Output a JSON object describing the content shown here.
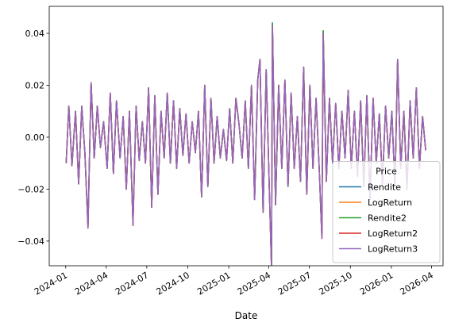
{
  "chart_data": {
    "type": "line",
    "x_label": "Date",
    "legend_title": "Price",
    "legend": "lower right",
    "xlim": [
      "2023-11-25",
      "2026-04-27"
    ],
    "xticks": [
      {
        "value": "2024-01-01",
        "label": "2024-01"
      },
      {
        "value": "2024-04-01",
        "label": "2024-04"
      },
      {
        "value": "2024-07-01",
        "label": "2024-07"
      },
      {
        "value": "2024-10-01",
        "label": "2024-10"
      },
      {
        "value": "2025-01-01",
        "label": "2025-01"
      },
      {
        "value": "2025-04-01",
        "label": "2025-04"
      },
      {
        "value": "2025-07-01",
        "label": "2025-07"
      },
      {
        "value": "2025-10-01",
        "label": "2025-10"
      },
      {
        "value": "2026-01-01",
        "label": "2026-01"
      },
      {
        "value": "2026-04-01",
        "label": "2026-04"
      }
    ],
    "ylim": [
      -0.0495,
      0.0504
    ],
    "yticks": [
      {
        "value": -0.04,
        "label": "−0.04"
      },
      {
        "value": -0.02,
        "label": "−0.02"
      },
      {
        "value": 0,
        "label": "0.00"
      },
      {
        "value": 0.02,
        "label": "0.02"
      },
      {
        "value": 0.04,
        "label": "0.04"
      }
    ],
    "x": [
      "2024-01-02",
      "2024-01-08",
      "2024-01-15",
      "2024-01-23",
      "2024-01-30",
      "2024-02-06",
      "2024-02-13",
      "2024-02-20",
      "2024-02-27",
      "2024-03-05",
      "2024-03-12",
      "2024-03-19",
      "2024-03-26",
      "2024-04-03",
      "2024-04-10",
      "2024-04-17",
      "2024-04-24",
      "2024-05-02",
      "2024-05-09",
      "2024-05-16",
      "2024-05-23",
      "2024-05-31",
      "2024-06-07",
      "2024-06-14",
      "2024-06-21",
      "2024-06-28",
      "2024-07-05",
      "2024-07-12",
      "2024-07-19",
      "2024-07-26",
      "2024-08-02",
      "2024-08-09",
      "2024-08-16",
      "2024-08-23",
      "2024-08-30",
      "2024-09-06",
      "2024-09-13",
      "2024-09-20",
      "2024-09-27",
      "2024-10-04",
      "2024-10-11",
      "2024-10-18",
      "2024-10-25",
      "2024-11-01",
      "2024-11-08",
      "2024-11-15",
      "2024-11-22",
      "2024-11-29",
      "2024-12-06",
      "2024-12-13",
      "2024-12-20",
      "2024-12-27",
      "2025-01-03",
      "2025-01-10",
      "2025-01-17",
      "2025-01-24",
      "2025-01-31",
      "2025-02-07",
      "2025-02-14",
      "2025-02-21",
      "2025-02-28",
      "2025-03-07",
      "2025-03-12",
      "2025-03-19",
      "2025-03-26",
      "2025-04-02",
      "2025-04-07",
      "2025-04-09",
      "2025-04-16",
      "2025-04-23",
      "2025-04-30",
      "2025-05-07",
      "2025-05-14",
      "2025-05-21",
      "2025-05-28",
      "2025-06-04",
      "2025-06-11",
      "2025-06-18",
      "2025-06-25",
      "2025-07-02",
      "2025-07-09",
      "2025-07-16",
      "2025-07-23",
      "2025-07-29",
      "2025-08-01",
      "2025-08-08",
      "2025-08-15",
      "2025-08-22",
      "2025-08-29",
      "2025-09-05",
      "2025-09-12",
      "2025-09-19",
      "2025-09-26",
      "2025-10-03",
      "2025-10-10",
      "2025-10-17",
      "2025-10-24",
      "2025-10-31",
      "2025-11-07",
      "2025-11-14",
      "2025-11-21",
      "2025-11-28",
      "2025-12-05",
      "2025-12-12",
      "2025-12-19",
      "2025-12-26",
      "2026-01-02",
      "2026-01-09",
      "2026-01-15",
      "2026-01-22",
      "2026-01-29",
      "2026-02-05",
      "2026-02-12",
      "2026-02-19",
      "2026-02-26",
      "2026-03-05",
      "2026-03-12",
      "2026-03-19"
    ],
    "series": [
      {
        "name": "Rendite",
        "color": "#1f77b4",
        "values": [
          -0.01,
          0.012,
          -0.011,
          0.01,
          -0.018,
          0.012,
          -0.006,
          -0.034,
          0.021,
          -0.008,
          0.012,
          -0.004,
          0.006,
          -0.012,
          0.017,
          -0.014,
          0.014,
          -0.008,
          0.008,
          -0.02,
          0.01,
          -0.033,
          0.012,
          -0.009,
          0.006,
          -0.01,
          0.019,
          -0.027,
          0.016,
          -0.022,
          0.01,
          -0.008,
          0.017,
          -0.01,
          0.014,
          -0.012,
          0.011,
          -0.007,
          0.009,
          -0.01,
          0.006,
          -0.006,
          0.01,
          -0.023,
          0.02,
          -0.019,
          0.015,
          -0.01,
          0.008,
          -0.008,
          0.003,
          -0.009,
          0.011,
          -0.01,
          0.015,
          0.005,
          -0.008,
          0.014,
          -0.012,
          0.02,
          -0.024,
          0.022,
          0.03,
          -0.029,
          0.026,
          -0.02,
          -0.05,
          0.044,
          -0.026,
          0.02,
          -0.012,
          0.022,
          -0.019,
          0.017,
          -0.012,
          0.008,
          -0.017,
          0.027,
          -0.022,
          0.02,
          -0.012,
          0.015,
          -0.012,
          -0.038,
          0.041,
          -0.017,
          0.015,
          -0.01,
          0.013,
          -0.012,
          0.01,
          -0.008,
          0.018,
          -0.012,
          0.01,
          -0.015,
          0.014,
          -0.019,
          0.016,
          -0.024,
          0.015,
          -0.01,
          0.009,
          -0.018,
          0.012,
          -0.008,
          0.01,
          -0.019,
          0.03,
          -0.012,
          0.01,
          -0.02,
          0.014,
          -0.008,
          0.019,
          -0.012,
          0.008,
          -0.005
        ]
      },
      {
        "name": "LogReturn",
        "color": "#ff7f0e",
        "values": [
          -0.01,
          0.012,
          -0.011,
          0.01,
          -0.018,
          0.012,
          -0.006,
          -0.035,
          0.021,
          -0.008,
          0.012,
          -0.004,
          0.006,
          -0.012,
          0.017,
          -0.014,
          0.014,
          -0.008,
          0.008,
          -0.02,
          0.01,
          -0.034,
          0.012,
          -0.009,
          0.006,
          -0.01,
          0.019,
          -0.027,
          0.016,
          -0.022,
          0.01,
          -0.008,
          0.017,
          -0.01,
          0.014,
          -0.012,
          0.011,
          -0.007,
          0.009,
          -0.01,
          0.006,
          -0.006,
          0.01,
          -0.023,
          0.02,
          -0.019,
          0.015,
          -0.01,
          0.008,
          -0.008,
          0.003,
          -0.009,
          0.011,
          -0.01,
          0.015,
          0.005,
          -0.008,
          0.014,
          -0.012,
          0.02,
          -0.024,
          0.022,
          0.03,
          -0.029,
          0.026,
          -0.02,
          -0.051,
          0.043,
          -0.026,
          0.02,
          -0.012,
          0.022,
          -0.019,
          0.017,
          -0.012,
          0.008,
          -0.017,
          0.027,
          -0.022,
          0.02,
          -0.012,
          0.015,
          -0.012,
          -0.039,
          0.04,
          -0.017,
          0.015,
          -0.01,
          0.013,
          -0.012,
          0.01,
          -0.008,
          0.018,
          -0.012,
          0.01,
          -0.015,
          0.014,
          -0.019,
          0.016,
          -0.024,
          0.015,
          -0.01,
          0.009,
          -0.018,
          0.012,
          -0.008,
          0.01,
          -0.019,
          0.03,
          -0.012,
          0.01,
          -0.02,
          0.014,
          -0.008,
          0.019,
          -0.012,
          0.008,
          -0.005
        ]
      },
      {
        "name": "Rendite2",
        "color": "#2ca02c",
        "values": [
          -0.01,
          0.012,
          -0.011,
          0.01,
          -0.018,
          0.012,
          -0.006,
          -0.034,
          0.021,
          -0.008,
          0.012,
          -0.004,
          0.006,
          -0.012,
          0.017,
          -0.014,
          0.014,
          -0.008,
          0.008,
          -0.02,
          0.01,
          -0.033,
          0.012,
          -0.009,
          0.006,
          -0.01,
          0.019,
          -0.027,
          0.016,
          -0.022,
          0.01,
          -0.008,
          0.017,
          -0.01,
          0.014,
          -0.012,
          0.011,
          -0.007,
          0.009,
          -0.01,
          0.006,
          -0.006,
          0.01,
          -0.023,
          0.02,
          -0.019,
          0.015,
          -0.01,
          0.008,
          -0.008,
          0.003,
          -0.009,
          0.011,
          -0.01,
          0.015,
          0.005,
          -0.008,
          0.014,
          -0.012,
          0.02,
          -0.024,
          0.022,
          0.03,
          -0.029,
          0.026,
          -0.02,
          -0.05,
          0.044,
          -0.026,
          0.02,
          -0.012,
          0.022,
          -0.019,
          0.017,
          -0.012,
          0.008,
          -0.017,
          0.027,
          -0.022,
          0.02,
          -0.012,
          0.015,
          -0.012,
          -0.038,
          0.041,
          -0.017,
          0.015,
          -0.01,
          0.013,
          -0.012,
          0.01,
          -0.008,
          0.018,
          -0.012,
          0.01,
          -0.015,
          0.014,
          -0.019,
          0.016,
          -0.024,
          0.015,
          -0.01,
          0.009,
          -0.018,
          0.012,
          -0.008,
          0.01,
          -0.019,
          0.03,
          -0.012,
          0.01,
          -0.02,
          0.014,
          -0.008,
          0.019,
          -0.012,
          0.008,
          -0.005
        ]
      },
      {
        "name": "LogReturn2",
        "color": "#d62728",
        "values": [
          -0.01,
          0.012,
          -0.011,
          0.01,
          -0.018,
          0.012,
          -0.006,
          -0.035,
          0.021,
          -0.008,
          0.012,
          -0.004,
          0.006,
          -0.012,
          0.017,
          -0.014,
          0.014,
          -0.008,
          0.008,
          -0.02,
          0.01,
          -0.034,
          0.012,
          -0.009,
          0.006,
          -0.01,
          0.019,
          -0.027,
          0.016,
          -0.022,
          0.01,
          -0.008,
          0.017,
          -0.01,
          0.014,
          -0.012,
          0.011,
          -0.007,
          0.009,
          -0.01,
          0.006,
          -0.006,
          0.01,
          -0.023,
          0.02,
          -0.019,
          0.015,
          -0.01,
          0.008,
          -0.008,
          0.003,
          -0.009,
          0.011,
          -0.01,
          0.015,
          0.005,
          -0.008,
          0.014,
          -0.012,
          0.02,
          -0.024,
          0.022,
          0.03,
          -0.029,
          0.026,
          -0.02,
          -0.051,
          0.043,
          -0.026,
          0.02,
          -0.012,
          0.022,
          -0.019,
          0.017,
          -0.012,
          0.008,
          -0.017,
          0.027,
          -0.022,
          0.02,
          -0.012,
          0.015,
          -0.012,
          -0.039,
          0.04,
          -0.017,
          0.015,
          -0.01,
          0.013,
          -0.012,
          0.01,
          -0.008,
          0.018,
          -0.012,
          0.01,
          -0.015,
          0.014,
          -0.019,
          0.016,
          -0.024,
          0.015,
          -0.01,
          0.009,
          -0.018,
          0.012,
          -0.008,
          0.01,
          -0.019,
          0.03,
          -0.012,
          0.01,
          -0.02,
          0.014,
          -0.008,
          0.019,
          -0.012,
          0.008,
          -0.005
        ]
      },
      {
        "name": "LogReturn3",
        "color": "#9467bd",
        "values": [
          -0.01,
          0.012,
          -0.011,
          0.01,
          -0.018,
          0.012,
          -0.006,
          -0.035,
          0.021,
          -0.008,
          0.012,
          -0.004,
          0.006,
          -0.012,
          0.017,
          -0.014,
          0.014,
          -0.008,
          0.008,
          -0.02,
          0.01,
          -0.034,
          0.012,
          -0.009,
          0.006,
          -0.01,
          0.019,
          -0.027,
          0.016,
          -0.022,
          0.01,
          -0.008,
          0.017,
          -0.01,
          0.014,
          -0.012,
          0.011,
          -0.007,
          0.009,
          -0.01,
          0.006,
          -0.006,
          0.01,
          -0.023,
          0.02,
          -0.019,
          0.015,
          -0.01,
          0.008,
          -0.008,
          0.003,
          -0.009,
          0.011,
          -0.01,
          0.015,
          0.005,
          -0.008,
          0.014,
          -0.012,
          0.02,
          -0.024,
          0.022,
          0.03,
          -0.029,
          0.026,
          -0.02,
          -0.051,
          0.043,
          -0.026,
          0.02,
          -0.012,
          0.022,
          -0.019,
          0.017,
          -0.012,
          0.008,
          -0.017,
          0.027,
          -0.022,
          0.02,
          -0.012,
          0.015,
          -0.012,
          -0.039,
          0.04,
          -0.017,
          0.015,
          -0.01,
          0.013,
          -0.012,
          0.01,
          -0.008,
          0.018,
          -0.012,
          0.01,
          -0.015,
          0.014,
          -0.019,
          0.016,
          -0.024,
          0.015,
          -0.01,
          0.009,
          -0.018,
          0.012,
          -0.008,
          0.01,
          -0.019,
          0.03,
          -0.012,
          0.01,
          -0.02,
          0.014,
          -0.008,
          0.019,
          -0.012,
          0.008,
          -0.005
        ]
      }
    ]
  }
}
